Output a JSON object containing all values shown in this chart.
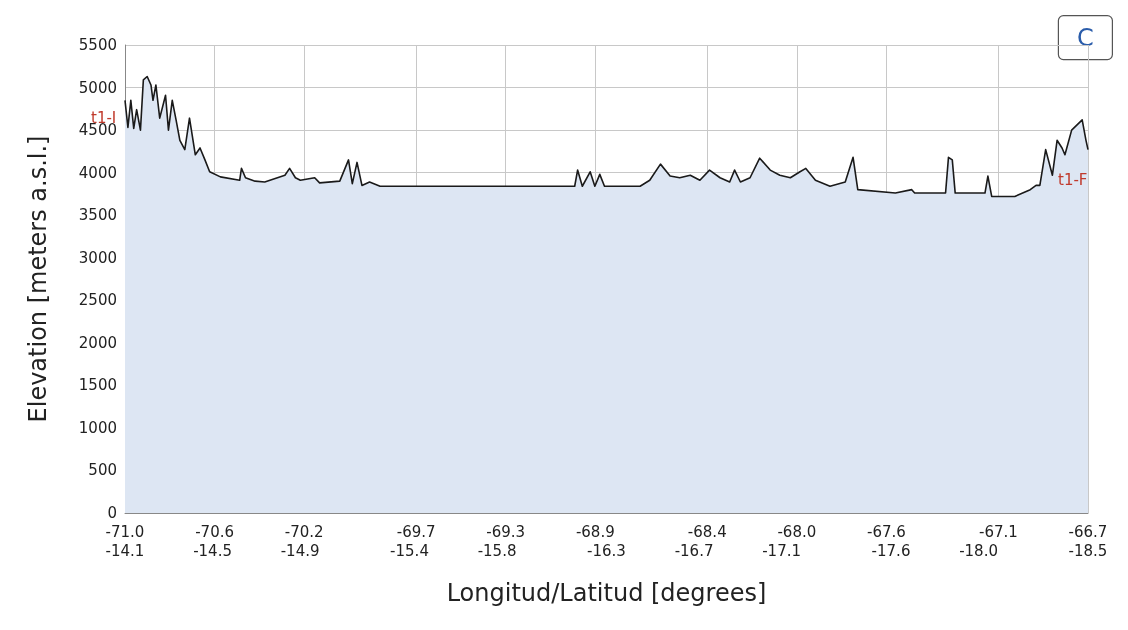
{
  "chart_data": {
    "type": "area",
    "xlabel": "Longitud/Latitud [degrees]",
    "ylabel": "Elevation [meters a.s.l.]",
    "xlim": [
      -71.0,
      -66.7
    ],
    "xticks": [
      {
        "value": -71.0,
        "label": "-71.0"
      },
      {
        "value": -70.6,
        "label": "-70.6"
      },
      {
        "value": -70.2,
        "label": "-70.2"
      },
      {
        "value": -69.7,
        "label": "-69.7"
      },
      {
        "value": -69.3,
        "label": "-69.3"
      },
      {
        "value": -68.9,
        "label": "-68.9"
      },
      {
        "value": -68.4,
        "label": "-68.4"
      },
      {
        "value": -68.0,
        "label": "-68.0"
      },
      {
        "value": -67.6,
        "label": "-67.6"
      },
      {
        "value": -67.1,
        "label": "-67.1"
      },
      {
        "value": -66.7,
        "label": "-66.7"
      }
    ],
    "x2lim": [
      -14.1,
      -18.5
    ],
    "x2ticks": [
      {
        "value": -14.1,
        "label": "-14.1"
      },
      {
        "value": -14.5,
        "label": "-14.5"
      },
      {
        "value": -14.9,
        "label": "-14.9"
      },
      {
        "value": -15.4,
        "label": "-15.4"
      },
      {
        "value": -15.8,
        "label": "-15.8"
      },
      {
        "value": -16.3,
        "label": "-16.3"
      },
      {
        "value": -16.7,
        "label": "-16.7"
      },
      {
        "value": -17.1,
        "label": "-17.1"
      },
      {
        "value": -17.6,
        "label": "-17.6"
      },
      {
        "value": -18.0,
        "label": "-18.0"
      },
      {
        "value": -18.5,
        "label": "-18.5"
      }
    ],
    "ylim": [
      0,
      5500
    ],
    "yticks": [
      0,
      500,
      1000,
      1500,
      2000,
      2500,
      3000,
      3500,
      4000,
      4500,
      5000,
      5500
    ],
    "grid": true,
    "marker": "none",
    "line_style": "solid",
    "series": [
      {
        "color": "#dde6f3",
        "x": [
          -71.0,
          -70.987,
          -70.974,
          -70.961,
          -70.948,
          -70.931,
          -70.918,
          -70.901,
          -70.884,
          -70.875,
          -70.862,
          -70.845,
          -70.819,
          -70.806,
          -70.789,
          -70.772,
          -70.755,
          -70.733,
          -70.712,
          -70.686,
          -70.665,
          -70.643,
          -70.622,
          -70.574,
          -70.488,
          -70.48,
          -70.462,
          -70.419,
          -70.376,
          -70.286,
          -70.265,
          -70.239,
          -70.217,
          -70.153,
          -70.131,
          -70.041,
          -70.002,
          -69.985,
          -69.964,
          -69.942,
          -69.908,
          -69.861,
          -68.992,
          -68.979,
          -68.958,
          -68.923,
          -68.902,
          -68.88,
          -68.859,
          -68.7,
          -68.657,
          -68.609,
          -68.566,
          -68.523,
          -68.476,
          -68.433,
          -68.39,
          -68.343,
          -68.3,
          -68.278,
          -68.252,
          -68.209,
          -68.166,
          -68.119,
          -68.076,
          -68.029,
          -67.986,
          -67.96,
          -67.917,
          -67.852,
          -67.784,
          -67.749,
          -67.728,
          -67.56,
          -67.487,
          -67.474,
          -67.336,
          -67.323,
          -67.306,
          -67.293,
          -67.16,
          -67.147,
          -67.13,
          -67.027,
          -66.958,
          -66.932,
          -66.915,
          -66.889,
          -66.859,
          -66.838,
          -66.816,
          -66.803,
          -66.773,
          -66.726,
          -66.709,
          -66.7
        ],
        "values": [
          4850,
          4530,
          4850,
          4520,
          4740,
          4500,
          5090,
          5130,
          5030,
          4850,
          5030,
          4640,
          4910,
          4500,
          4850,
          4620,
          4380,
          4270,
          4640,
          4210,
          4290,
          4150,
          4010,
          3950,
          3910,
          4050,
          3940,
          3900,
          3890,
          3970,
          4050,
          3940,
          3910,
          3940,
          3880,
          3900,
          4150,
          3870,
          4120,
          3850,
          3890,
          3840,
          3840,
          4030,
          3840,
          4010,
          3840,
          3980,
          3840,
          3840,
          3910,
          4100,
          3960,
          3940,
          3970,
          3910,
          4030,
          3940,
          3890,
          4030,
          3890,
          3940,
          4170,
          4030,
          3970,
          3940,
          4010,
          4050,
          3910,
          3840,
          3890,
          4180,
          3800,
          3760,
          3800,
          3760,
          3760,
          4180,
          4150,
          3760,
          3760,
          3960,
          3720,
          3720,
          3800,
          3850,
          3850,
          4270,
          3970,
          4380,
          4290,
          4210,
          4500,
          4620,
          4380,
          4270
        ]
      }
    ],
    "annotations": [
      {
        "text": "t1-I",
        "x": -71.0,
        "y": 4500
      },
      {
        "text": "t1-F",
        "x": -66.7,
        "y": 4000
      },
      "C"
    ]
  }
}
